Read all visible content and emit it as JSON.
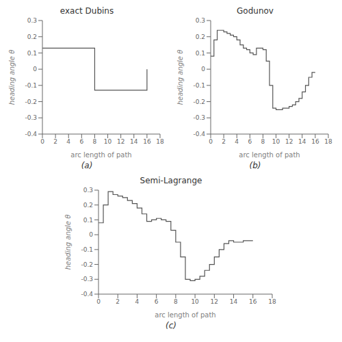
{
  "chart_data": [
    {
      "type": "line",
      "title": "exact Dubins",
      "x_label": "arc length of path",
      "y_label": "heading angle θ",
      "x": [
        0,
        8,
        8,
        16,
        16
      ],
      "values": [
        0.13,
        0.13,
        -0.13,
        -0.13,
        0.0
      ],
      "xlim": [
        0,
        18
      ],
      "ylim": [
        -0.4,
        0.3
      ],
      "xticks": [
        0,
        2,
        4,
        6,
        8,
        10,
        12,
        14,
        16,
        18
      ],
      "yticks": [
        -0.4,
        -0.3,
        -0.2,
        -0.1,
        0,
        0.1,
        0.2,
        0.3
      ],
      "color": "#555555",
      "grid": false,
      "annotations": [
        "(a)"
      ]
    },
    {
      "type": "step",
      "title": "Godunov",
      "x_label": "arc length of path",
      "y_label": "heading angle θ",
      "x": [
        0.0,
        0.5,
        1.0,
        1.5,
        2.0,
        2.5,
        3.0,
        3.5,
        4.0,
        4.5,
        5.0,
        5.5,
        6.0,
        6.5,
        7.0,
        7.5,
        8.0,
        8.5,
        9.0,
        9.5,
        10.0,
        10.5,
        11.0,
        11.5,
        12.0,
        12.5,
        13.0,
        13.5,
        14.0,
        14.5,
        15.0,
        15.5,
        16.0
      ],
      "values": [
        0.08,
        0.18,
        0.24,
        0.24,
        0.23,
        0.22,
        0.21,
        0.2,
        0.18,
        0.15,
        0.13,
        0.12,
        0.1,
        0.09,
        0.13,
        0.13,
        0.12,
        0.05,
        -0.1,
        -0.24,
        -0.25,
        -0.25,
        -0.24,
        -0.24,
        -0.23,
        -0.22,
        -0.2,
        -0.18,
        -0.14,
        -0.1,
        -0.05,
        -0.02,
        -0.02
      ],
      "xlim": [
        0,
        18
      ],
      "ylim": [
        -0.4,
        0.3
      ],
      "xticks": [
        0,
        2,
        4,
        6,
        8,
        10,
        12,
        14,
        16,
        18
      ],
      "yticks": [
        -0.4,
        -0.3,
        -0.2,
        -0.1,
        0,
        0.1,
        0.2,
        0.3
      ],
      "color": "#555555",
      "grid": false,
      "annotations": [
        "(b)"
      ]
    },
    {
      "type": "step",
      "title": "Semi-Lagrange",
      "x_label": "arc length of path",
      "y_label": "heading angle θ",
      "x": [
        0.0,
        0.5,
        1.0,
        1.5,
        2.0,
        2.5,
        3.0,
        3.5,
        4.0,
        4.5,
        5.0,
        5.5,
        6.0,
        6.5,
        7.0,
        7.5,
        8.0,
        8.5,
        9.0,
        9.5,
        10.0,
        10.5,
        11.0,
        11.5,
        12.0,
        12.5,
        13.0,
        13.5,
        14.0,
        14.5,
        15.0,
        15.5,
        16.0
      ],
      "values": [
        0.08,
        0.2,
        0.29,
        0.27,
        0.26,
        0.25,
        0.23,
        0.21,
        0.18,
        0.14,
        0.09,
        0.1,
        0.11,
        0.1,
        0.09,
        0.03,
        -0.05,
        -0.15,
        -0.3,
        -0.31,
        -0.3,
        -0.28,
        -0.24,
        -0.2,
        -0.15,
        -0.1,
        -0.06,
        -0.04,
        -0.05,
        -0.05,
        -0.04,
        -0.04,
        -0.04
      ],
      "xlim": [
        0,
        18
      ],
      "ylim": [
        -0.4,
        0.3
      ],
      "xticks": [
        0,
        2,
        4,
        6,
        8,
        10,
        12,
        14,
        16,
        18
      ],
      "yticks": [
        -0.4,
        -0.3,
        -0.2,
        -0.1,
        0,
        0.1,
        0.2,
        0.3
      ],
      "color": "#555555",
      "grid": false,
      "annotations": [
        "(c)"
      ]
    }
  ]
}
